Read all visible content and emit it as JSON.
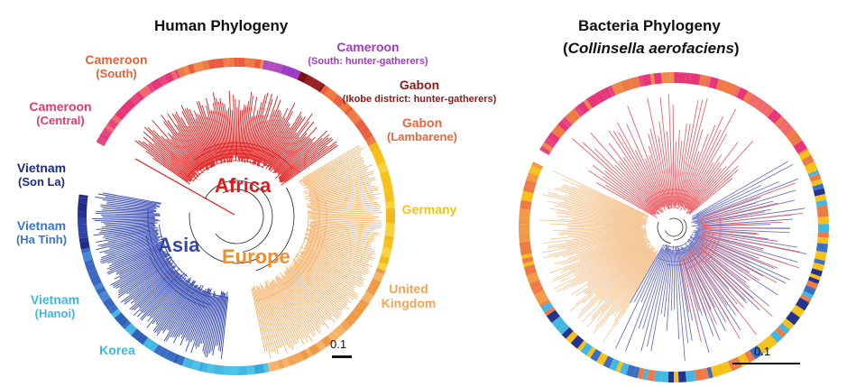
{
  "human": {
    "title": "Human Phylogeny",
    "labels": {
      "cameroon_south": {
        "name": "Cameroon",
        "sub": "(South)",
        "color": "#e0643a"
      },
      "cameroon_hg": {
        "name": "Cameroon",
        "sub": "(South: hunter-gatherers)",
        "color": "#a23bbf"
      },
      "gabon_ikobe": {
        "name": "Gabon",
        "sub": "(Ikobe district: hunter-gatherers)",
        "color": "#8b1a1a"
      },
      "gabon_lambarene": {
        "name": "Gabon",
        "sub": "(Lambarene)",
        "color": "#e8663f"
      },
      "cameroon_central": {
        "name": "Cameroon",
        "sub": "(Central)",
        "color": "#e23a6a"
      },
      "vietnam_sonla": {
        "name": "Vietnam",
        "sub": "(Son La)",
        "color": "#1d2a8a"
      },
      "vietnam_hatinh": {
        "name": "Vietnam",
        "sub": "(Ha Tinh)",
        "color": "#3b74c8"
      },
      "vietnam_hanoi": {
        "name": "Vietnam",
        "sub": "(Hanoi)",
        "color": "#3cb6e0"
      },
      "korea": {
        "name": "Korea",
        "color": "#3cb6e0"
      },
      "germany": {
        "name": "Germany",
        "color": "#f3c319"
      },
      "uk": {
        "name": "United",
        "sub": "Kingdom",
        "color": "#f0a456"
      }
    },
    "clades": {
      "africa": {
        "label": "Africa",
        "color": "#e01b1b"
      },
      "asia": {
        "label": "Asia",
        "color": "#3347b0"
      },
      "europe": {
        "label": "Europe",
        "color": "#f08d2e"
      }
    },
    "scale_label": "0.1"
  },
  "bacteria": {
    "title": "Bacteria Phylogeny",
    "subtitle_open": "(",
    "subtitle_italic": "Collinsella aerofaciens",
    "subtitle_close": ")",
    "scale_label": "0.1"
  },
  "colors": {
    "africa_red": "#e01b1b",
    "asia_blue": "#3347b0",
    "europe_orange": "#f7b26b",
    "bacteria_pink": "#e9646a",
    "bacteria_tan": "#f5c99a",
    "bacteria_blue": "#6a74c6",
    "ring_pink": "#e8357a",
    "ring_orange": "#ee7a45",
    "ring_yellow": "#f6c21a",
    "ring_light_orange": "#f4a457",
    "ring_light_blue": "#43b8e4",
    "ring_dark_blue": "#25338f",
    "ring_mid_blue": "#3a6fc4"
  }
}
